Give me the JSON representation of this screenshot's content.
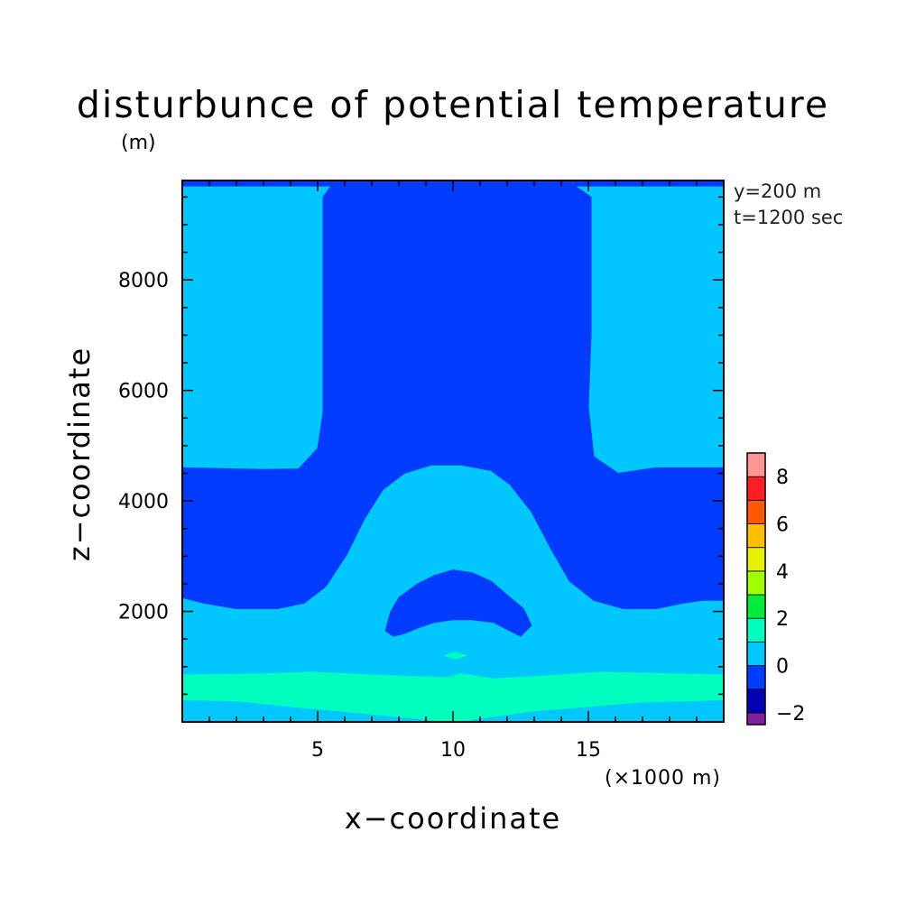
{
  "chart_data": {
    "type": "heatmap",
    "subtype": "filled-contour",
    "title": "disturbunce of potential temperature",
    "y_unit_label": "(m)",
    "x_unit_label": "(×1000 m)",
    "xlabel": "x−coordinate",
    "ylabel": "z−coordinate",
    "annotations": [
      "y=200 m",
      "t=1200 sec"
    ],
    "xlim": [
      0,
      20
    ],
    "ylim": [
      0,
      9800
    ],
    "x_ticks": [
      5,
      10,
      15
    ],
    "y_ticks": [
      2000,
      4000,
      6000,
      8000
    ],
    "colorbar": {
      "ticks": [
        -2,
        0,
        2,
        4,
        6,
        8
      ],
      "bins": [
        {
          "from": -2.5,
          "to": -2,
          "color": "#7f1f9f"
        },
        {
          "from": -2,
          "to": -1,
          "color": "#0000b4"
        },
        {
          "from": -1,
          "to": 0,
          "color": "#003cff"
        },
        {
          "from": 0,
          "to": 1,
          "color": "#00c8ff"
        },
        {
          "from": 1,
          "to": 2,
          "color": "#00ffbe"
        },
        {
          "from": 2,
          "to": 3,
          "color": "#00eb3c"
        },
        {
          "from": 3,
          "to": 4,
          "color": "#a0ff00"
        },
        {
          "from": 4,
          "to": 5,
          "color": "#e6f000"
        },
        {
          "from": 5,
          "to": 6,
          "color": "#ffbe00"
        },
        {
          "from": 6,
          "to": 7,
          "color": "#ff5a00"
        },
        {
          "from": 7,
          "to": 8,
          "color": "#ff1e28"
        },
        {
          "from": 8,
          "to": 9,
          "color": "#ff9696"
        }
      ]
    },
    "regions": [
      {
        "name": "background",
        "level": "0 to 1",
        "color": "#00c8ff",
        "points": [
          [
            0,
            0
          ],
          [
            20,
            0
          ],
          [
            20,
            9800
          ],
          [
            0,
            9800
          ]
        ]
      },
      {
        "name": "top-band",
        "level": "-1 to 0",
        "color": "#003cff",
        "points": [
          [
            0,
            9700
          ],
          [
            20,
            9700
          ],
          [
            20,
            9800
          ],
          [
            0,
            9800
          ]
        ]
      },
      {
        "name": "central-plume",
        "level": "-1 to 0",
        "color": "#003cff",
        "points": [
          [
            0,
            2250
          ],
          [
            0.8,
            2150
          ],
          [
            2,
            2050
          ],
          [
            3.5,
            2050
          ],
          [
            4.5,
            2150
          ],
          [
            5.3,
            2450
          ],
          [
            6.1,
            3050
          ],
          [
            6.7,
            3650
          ],
          [
            7.4,
            4200
          ],
          [
            8.2,
            4500
          ],
          [
            9.2,
            4650
          ],
          [
            10.3,
            4650
          ],
          [
            11.4,
            4550
          ],
          [
            12.1,
            4300
          ],
          [
            12.9,
            3800
          ],
          [
            13.6,
            3150
          ],
          [
            14.3,
            2550
          ],
          [
            15.2,
            2200
          ],
          [
            16.3,
            2050
          ],
          [
            17.5,
            2050
          ],
          [
            18.5,
            2150
          ],
          [
            19.2,
            2200
          ],
          [
            20,
            2200
          ],
          [
            20,
            4600
          ],
          [
            17.5,
            4600
          ],
          [
            16.1,
            4500
          ],
          [
            15.2,
            4800
          ],
          [
            15.0,
            5700
          ],
          [
            15.1,
            7000
          ],
          [
            15.1,
            9500
          ],
          [
            14.5,
            9700
          ],
          [
            5.5,
            9700
          ],
          [
            5.2,
            9500
          ],
          [
            5.2,
            7000
          ],
          [
            5.2,
            5600
          ],
          [
            5.0,
            4950
          ],
          [
            4.3,
            4580
          ],
          [
            3.0,
            4570
          ],
          [
            0,
            4600
          ]
        ]
      },
      {
        "name": "lower-cold-bubble",
        "level": "-1 to 0",
        "color": "#003cff",
        "points": [
          [
            7.5,
            1650
          ],
          [
            7.7,
            2000
          ],
          [
            8.0,
            2250
          ],
          [
            8.7,
            2500
          ],
          [
            9.3,
            2650
          ],
          [
            10.0,
            2750
          ],
          [
            10.7,
            2700
          ],
          [
            11.4,
            2550
          ],
          [
            12.0,
            2300
          ],
          [
            12.6,
            2050
          ],
          [
            12.9,
            1750
          ],
          [
            12.5,
            1550
          ],
          [
            12.1,
            1650
          ],
          [
            11.5,
            1800
          ],
          [
            10.7,
            1850
          ],
          [
            10.0,
            1850
          ],
          [
            9.3,
            1800
          ],
          [
            8.7,
            1700
          ],
          [
            8.2,
            1600
          ],
          [
            7.8,
            1550
          ]
        ]
      },
      {
        "name": "near-surface-band",
        "level": "1 to 2",
        "color": "#00ffbe",
        "points": [
          [
            0,
            850
          ],
          [
            3.0,
            870
          ],
          [
            4.8,
            900
          ],
          [
            7.0,
            850
          ],
          [
            9.8,
            800
          ],
          [
            10.3,
            870
          ],
          [
            11.5,
            780
          ],
          [
            14.0,
            850
          ],
          [
            15.5,
            900
          ],
          [
            18.0,
            870
          ],
          [
            20,
            850
          ],
          [
            20,
            400
          ],
          [
            17.0,
            360
          ],
          [
            13.0,
            200
          ],
          [
            10.0,
            0
          ],
          [
            7.5,
            120
          ],
          [
            4.0,
            280
          ],
          [
            2.0,
            380
          ],
          [
            0,
            400
          ]
        ]
      },
      {
        "name": "small-warm-spot",
        "level": "1 to 2",
        "color": "#00ffbe",
        "points": [
          [
            9.7,
            1200
          ],
          [
            10.1,
            1260
          ],
          [
            10.5,
            1200
          ],
          [
            10.1,
            1150
          ]
        ]
      }
    ]
  }
}
